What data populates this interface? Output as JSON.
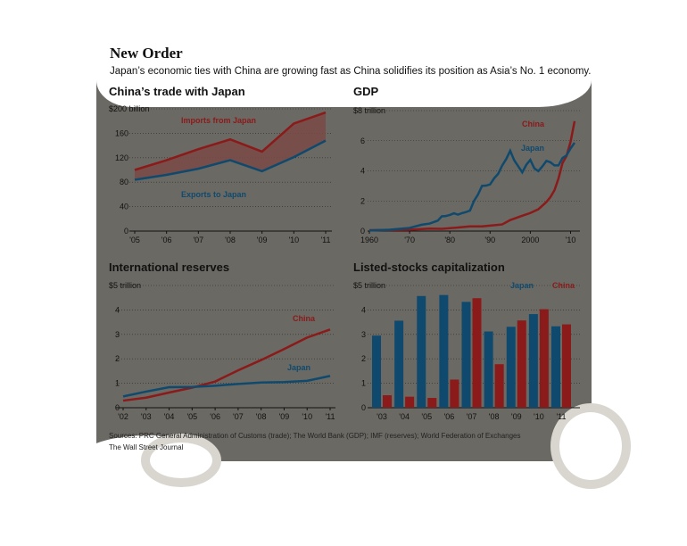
{
  "header": {
    "title": "New Order",
    "subtitle": "Japan’s economic ties with China are growing fast as China solidifies its position as Asia’s No. 1 economy."
  },
  "footer": {
    "sources": "Sources: PRC General Administration of Customs (trade); The World Bank (GDP); IMF (reserves); World Federation of Exchanges",
    "credit": "The Wall Street Journal"
  },
  "colors": {
    "china": "#8b1a1a",
    "japan": "#0f4a6e",
    "panel": "#6b6963",
    "band": "#7a4a45"
  },
  "chart_data": [
    {
      "type": "line",
      "title": "China’s trade with Japan",
      "unit_label": "$200 billion",
      "x": [
        "'05",
        "'06",
        "'07",
        "'08",
        "'09",
        "'10",
        "'11"
      ],
      "ylim": [
        0,
        200
      ],
      "y_ticks": [
        "0",
        "40",
        "80",
        "120",
        "160"
      ],
      "series": [
        {
          "name": "Imports from Japan",
          "values": [
            100,
            116,
            134,
            150,
            130,
            176,
            194
          ]
        },
        {
          "name": "Exports to Japan",
          "values": [
            84,
            92,
            102,
            116,
            98,
            121,
            148
          ]
        }
      ]
    },
    {
      "type": "line",
      "title": "GDP",
      "unit_label": "$8 trillion",
      "x_ticks": [
        "1960",
        "'70",
        "'80",
        "'90",
        "2000",
        "'10"
      ],
      "xlim": [
        1960,
        2011
      ],
      "ylim": [
        0,
        8
      ],
      "y_ticks": [
        "0",
        "2",
        "4",
        "6"
      ],
      "series": [
        {
          "name": "China",
          "points": [
            [
              1960,
              0.06
            ],
            [
              1965,
              0.07
            ],
            [
              1970,
              0.09
            ],
            [
              1975,
              0.16
            ],
            [
              1978,
              0.15
            ],
            [
              1980,
              0.19
            ],
            [
              1985,
              0.31
            ],
            [
              1988,
              0.31
            ],
            [
              1990,
              0.36
            ],
            [
              1993,
              0.44
            ],
            [
              1995,
              0.73
            ],
            [
              1998,
              1.02
            ],
            [
              2000,
              1.2
            ],
            [
              2002,
              1.45
            ],
            [
              2004,
              1.93
            ],
            [
              2005,
              2.26
            ],
            [
              2006,
              2.71
            ],
            [
              2007,
              3.49
            ],
            [
              2008,
              4.52
            ],
            [
              2009,
              4.99
            ],
            [
              2010,
              5.93
            ],
            [
              2011,
              7.3
            ]
          ]
        },
        {
          "name": "Japan",
          "points": [
            [
              1960,
              0.04
            ],
            [
              1965,
              0.09
            ],
            [
              1970,
              0.21
            ],
            [
              1973,
              0.42
            ],
            [
              1975,
              0.5
            ],
            [
              1977,
              0.69
            ],
            [
              1978,
              0.98
            ],
            [
              1979,
              1.0
            ],
            [
              1980,
              1.07
            ],
            [
              1981,
              1.18
            ],
            [
              1982,
              1.09
            ],
            [
              1983,
              1.19
            ],
            [
              1984,
              1.26
            ],
            [
              1985,
              1.36
            ],
            [
              1986,
              2.0
            ],
            [
              1987,
              2.43
            ],
            [
              1988,
              3.0
            ],
            [
              1989,
              3.02
            ],
            [
              1990,
              3.1
            ],
            [
              1991,
              3.5
            ],
            [
              1992,
              3.8
            ],
            [
              1993,
              4.35
            ],
            [
              1994,
              4.78
            ],
            [
              1995,
              5.33
            ],
            [
              1996,
              4.7
            ],
            [
              1997,
              4.3
            ],
            [
              1998,
              3.9
            ],
            [
              1999,
              4.4
            ],
            [
              2000,
              4.73
            ],
            [
              2001,
              4.16
            ],
            [
              2002,
              3.98
            ],
            [
              2003,
              4.3
            ],
            [
              2004,
              4.66
            ],
            [
              2005,
              4.57
            ],
            [
              2006,
              4.36
            ],
            [
              2007,
              4.36
            ],
            [
              2008,
              4.85
            ],
            [
              2009,
              5.03
            ],
            [
              2010,
              5.49
            ],
            [
              2011,
              5.87
            ]
          ]
        }
      ]
    },
    {
      "type": "line",
      "title": "International reserves",
      "unit_label": "$5 trillion",
      "x": [
        "'02",
        "'03",
        "'04",
        "'05",
        "'06",
        "'07",
        "'08",
        "'09",
        "'10",
        "'11"
      ],
      "ylim": [
        0,
        5
      ],
      "y_ticks": [
        "0",
        "1",
        "2",
        "3",
        "4"
      ],
      "series": [
        {
          "name": "China",
          "values": [
            0.29,
            0.41,
            0.62,
            0.82,
            1.07,
            1.53,
            1.95,
            2.4,
            2.87,
            3.2
          ]
        },
        {
          "name": "Japan",
          "values": [
            0.46,
            0.66,
            0.84,
            0.85,
            0.9,
            0.97,
            1.03,
            1.05,
            1.1,
            1.3
          ]
        }
      ]
    },
    {
      "type": "bar",
      "title": "Listed-stocks capitalization",
      "unit_label": "$5 trillion",
      "categories": [
        "'03",
        "'04",
        "'05",
        "'06",
        "'07",
        "'08",
        "'09",
        "'10",
        "'11"
      ],
      "ylim": [
        0,
        5
      ],
      "y_ticks": [
        "0",
        "1",
        "2",
        "3",
        "4"
      ],
      "series": [
        {
          "name": "Japan",
          "values": [
            2.95,
            3.56,
            4.57,
            4.61,
            4.33,
            3.12,
            3.31,
            3.83,
            3.33
          ]
        },
        {
          "name": "China",
          "values": [
            0.51,
            0.45,
            0.4,
            1.15,
            4.48,
            1.78,
            3.57,
            4.03,
            3.41
          ]
        }
      ]
    }
  ]
}
